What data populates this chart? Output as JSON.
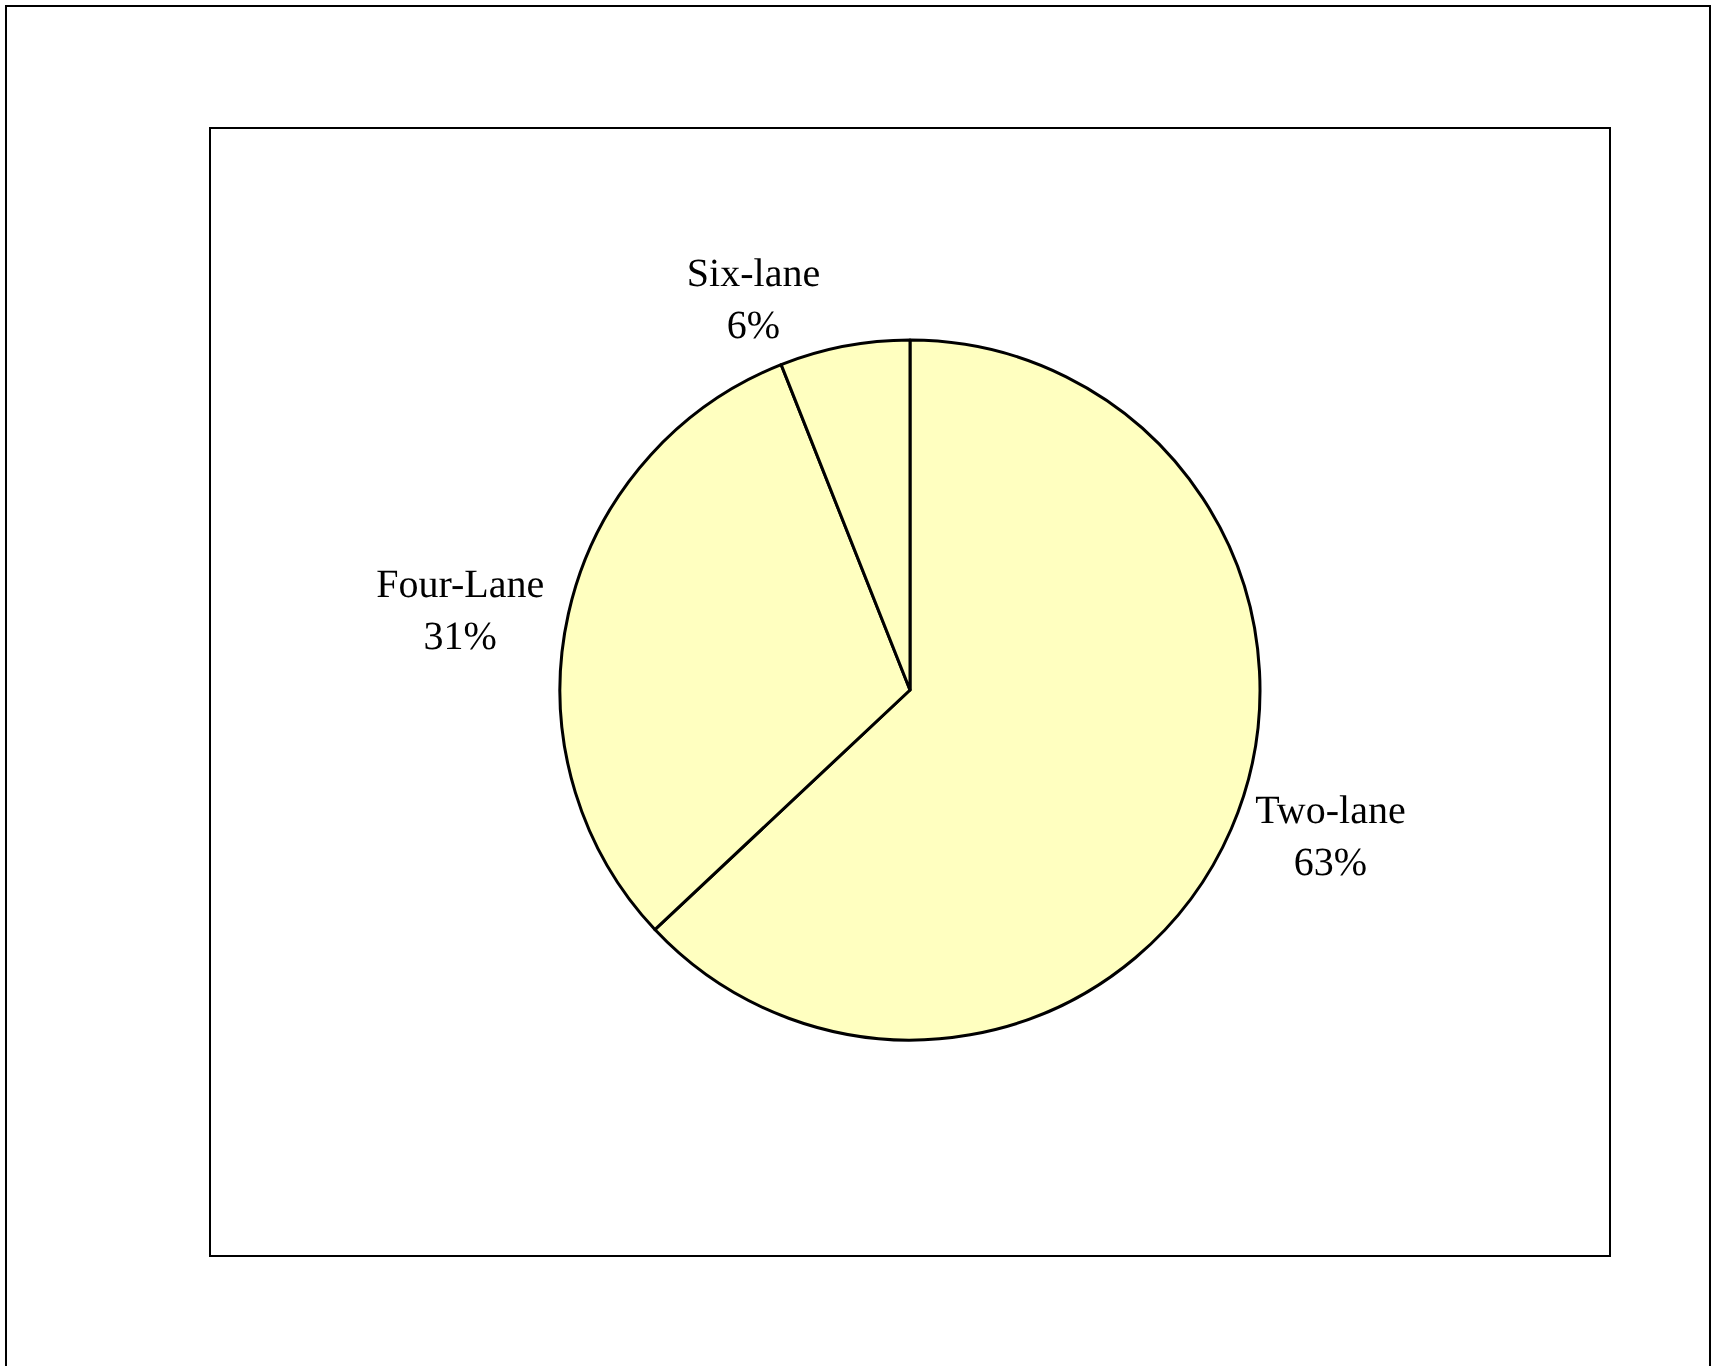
{
  "chart_data": {
    "type": "pie",
    "categories": [
      "Two-lane",
      "Four-Lane",
      "Six-lane"
    ],
    "values": [
      63,
      31,
      6
    ],
    "value_labels": [
      "63%",
      "31%",
      "6%"
    ],
    "colors": [
      "#ffffc0",
      "#ffffc0",
      "#ffffc0"
    ]
  }
}
